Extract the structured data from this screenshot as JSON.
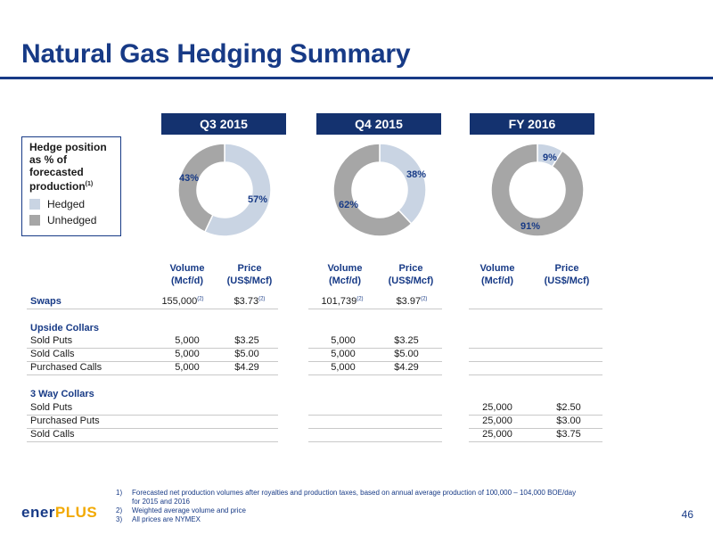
{
  "title": "Natural Gas Hedging Summary",
  "colors": {
    "brand": "#173a86",
    "header_bg": "#14326f",
    "hedged": "#c9d4e3",
    "unhedged": "#a6a6a6",
    "logo_accent": "#f2a900"
  },
  "periods": [
    {
      "name": "Q3 2015",
      "hedged_pct": 57,
      "unhedged_pct": 43,
      "hedged_label": "57%",
      "unhedged_label": "43%"
    },
    {
      "name": "Q4 2015",
      "hedged_pct": 38,
      "unhedged_pct": 62,
      "hedged_label": "38%",
      "unhedged_label": "62%"
    },
    {
      "name": "FY 2016",
      "hedged_pct": 9,
      "unhedged_pct": 91,
      "hedged_label": "9%",
      "unhedged_label": "91%"
    }
  ],
  "legend": {
    "title": "Hedge position as % of forecasted production",
    "title_sup": "(1)",
    "hedged": "Hedged",
    "unhedged": "Unhedged"
  },
  "columns": {
    "volume_1": "Volume",
    "volume_2": "(Mcf/d)",
    "price_1": "Price",
    "price_2": "(US$/Mcf)"
  },
  "rows": {
    "swaps": {
      "label": "Swaps",
      "q3_vol": "155,000",
      "q3_vol_sup": "(2)",
      "q3_price": "$3.73",
      "q3_price_sup": "(2)",
      "q4_vol": "101,739",
      "q4_vol_sup": "(2)",
      "q4_price": "$3.97",
      "q4_price_sup": "(2)"
    },
    "upside_collars": "Upside Collars",
    "uc_sold_puts": {
      "label": "Sold Puts",
      "q3_vol": "5,000",
      "q3_price": "$3.25",
      "q4_vol": "5,000",
      "q4_price": "$3.25"
    },
    "uc_sold_calls": {
      "label": "Sold Calls",
      "q3_vol": "5,000",
      "q3_price": "$5.00",
      "q4_vol": "5,000",
      "q4_price": "$5.00"
    },
    "uc_purchased_calls": {
      "label": "Purchased Calls",
      "q3_vol": "5,000",
      "q3_price": "$4.29",
      "q4_vol": "5,000",
      "q4_price": "$4.29"
    },
    "three_way": "3 Way Collars",
    "tw_sold_puts": {
      "label": "Sold Puts",
      "fy_vol": "25,000",
      "fy_price": "$2.50"
    },
    "tw_purchased_puts": {
      "label": "Purchased Puts",
      "fy_vol": "25,000",
      "fy_price": "$3.00"
    },
    "tw_sold_calls": {
      "label": "Sold Calls",
      "fy_vol": "25,000",
      "fy_price": "$3.75"
    }
  },
  "footnotes": [
    {
      "n": "1)",
      "text": "Forecasted net production volumes after royalties and production taxes, based on annual average production of 100,000 – 104,000 BOE/day",
      "text2": "for 2015 and 2016"
    },
    {
      "n": "2)",
      "text": "Weighted average volume and price"
    },
    {
      "n": "3)",
      "text": "All prices are NYMEX"
    }
  ],
  "logo": {
    "main": "ener",
    "accent": "PLUS"
  },
  "page_number": "46"
}
